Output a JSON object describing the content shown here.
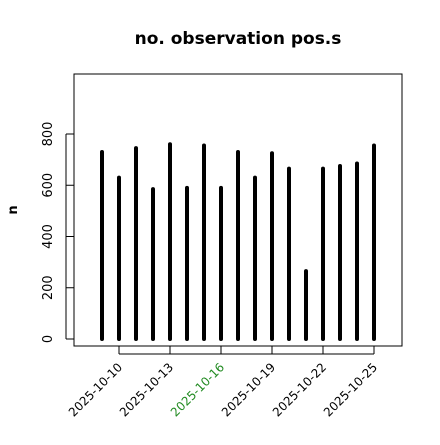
{
  "chart_data": {
    "type": "bar",
    "title": "no. observation pos.s",
    "xlabel": "",
    "ylabel": "n",
    "ylim": [
      0,
      800
    ],
    "y_ticks": [
      0,
      200,
      400,
      600,
      800
    ],
    "x_ticks": [
      "2025-10-10",
      "2025-10-13",
      "2025-10-16",
      "2025-10-19",
      "2025-10-22",
      "2025-10-25"
    ],
    "highlight_tick": "2025-10-16",
    "highlight_color": "#228B22",
    "bar_color": "#000000",
    "grid": false,
    "categories": [
      "2025-10-09",
      "2025-10-10",
      "2025-10-11",
      "2025-10-12",
      "2025-10-13",
      "2025-10-14",
      "2025-10-15",
      "2025-10-16",
      "2025-10-17",
      "2025-10-18",
      "2025-10-19",
      "2025-10-20",
      "2025-10-21",
      "2025-10-22",
      "2025-10-23",
      "2025-10-24",
      "2025-10-25"
    ],
    "values": [
      730,
      630,
      745,
      585,
      760,
      590,
      755,
      590,
      730,
      630,
      725,
      665,
      265,
      665,
      675,
      685,
      755
    ]
  }
}
